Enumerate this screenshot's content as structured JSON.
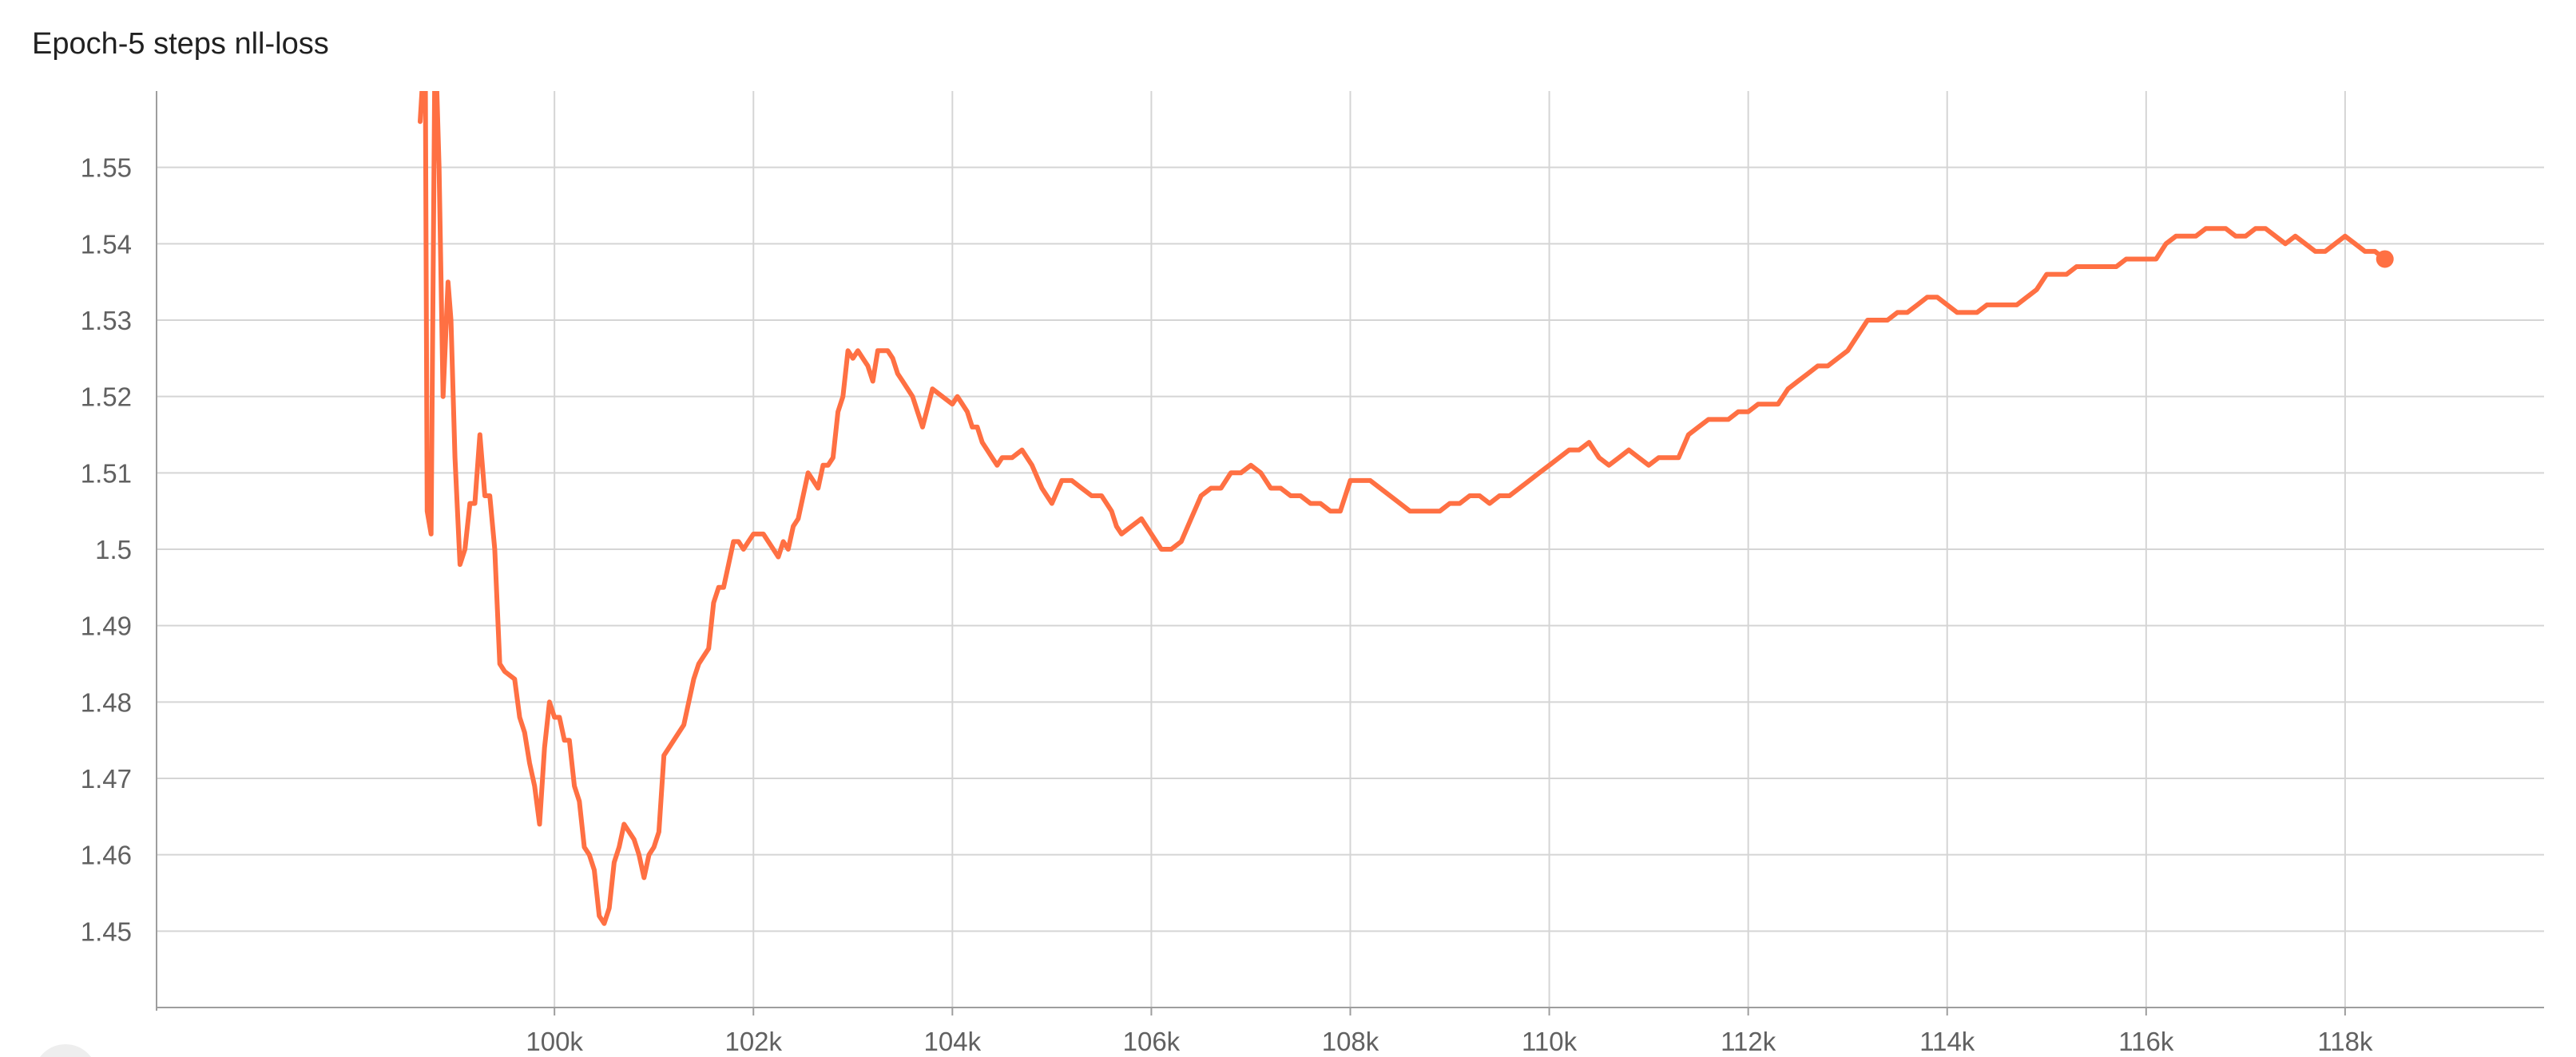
{
  "chart_data": {
    "type": "line",
    "title": "Epoch-5 steps nll-loss",
    "xlabel": "",
    "ylabel": "",
    "xlim": [
      96000,
      120000
    ],
    "ylim": [
      1.44,
      1.56
    ],
    "grid": true,
    "legend": "none",
    "x_ticks": [
      100000,
      102000,
      104000,
      106000,
      108000,
      110000,
      112000,
      114000,
      116000,
      118000
    ],
    "x_tick_labels": [
      "100k",
      "102k",
      "104k",
      "106k",
      "108k",
      "110k",
      "112k",
      "114k",
      "116k",
      "118k"
    ],
    "y_ticks": [
      1.45,
      1.46,
      1.47,
      1.48,
      1.49,
      1.5,
      1.51,
      1.52,
      1.53,
      1.54,
      1.55
    ],
    "y_tick_labels": [
      "1.45",
      "1.46",
      "1.47",
      "1.48",
      "1.49",
      "1.5",
      "1.51",
      "1.52",
      "1.53",
      "1.54",
      "1.55"
    ],
    "series": [
      {
        "color": "#ff7043",
        "last_point_marker": true,
        "x": [
          98650,
          98700,
          98720,
          98760,
          98800,
          98840,
          98880,
          98930,
          98960,
          99000,
          99050,
          99100,
          99150,
          99200,
          99250,
          99300,
          99350,
          99400,
          99450,
          99500,
          99600,
          99650,
          99700,
          99750,
          99800,
          99850,
          99900,
          99950,
          100000,
          100050,
          100100,
          100150,
          100200,
          100250,
          100300,
          100350,
          100400,
          100450,
          100500,
          100550,
          100600,
          100650,
          100700,
          100750,
          100800,
          100850,
          100900,
          100950,
          101000,
          101050,
          101100,
          101150,
          101200,
          101300,
          101400,
          101450,
          101500,
          101550,
          101600,
          101650,
          101700,
          101750,
          101800,
          101850,
          101900,
          101950,
          102000,
          102050,
          102100,
          102150,
          102200,
          102250,
          102300,
          102350,
          102400,
          102450,
          102500,
          102550,
          102600,
          102650,
          102700,
          102750,
          102800,
          102850,
          102900,
          102950,
          103000,
          103050,
          103100,
          103150,
          103200,
          103250,
          103300,
          103350,
          103400,
          103450,
          103500,
          103550,
          103600,
          103650,
          103700,
          103800,
          103900,
          104000,
          104050,
          104100,
          104150,
          104200,
          104250,
          104300,
          104350,
          104400,
          104450,
          104500,
          104600,
          104700,
          104800,
          104900,
          105000,
          105100,
          105200,
          105300,
          105400,
          105500,
          105550,
          105600,
          105650,
          105700,
          105800,
          105900,
          106000,
          106100,
          106200,
          106300,
          106400,
          106500,
          106600,
          106700,
          106800,
          106900,
          107000,
          107100,
          107200,
          107300,
          107400,
          107500,
          107600,
          107700,
          107800,
          107900,
          108000,
          108100,
          108200,
          108300,
          108400,
          108500,
          108600,
          108700,
          108800,
          108900,
          109000,
          109100,
          109200,
          109300,
          109400,
          109500,
          109600,
          109700,
          109800,
          109900,
          110000,
          110100,
          110200,
          110300,
          110400,
          110500,
          110600,
          110700,
          110800,
          110900,
          111000,
          111100,
          111200,
          111300,
          111400,
          111500,
          111600,
          111700,
          111800,
          111900,
          112000,
          112100,
          112200,
          112300,
          112400,
          112500,
          112600,
          112700,
          112800,
          112900,
          113000,
          113100,
          113200,
          113300,
          113400,
          113500,
          113600,
          113700,
          113800,
          113900,
          114000,
          114100,
          114200,
          114300,
          114400,
          114500,
          114600,
          114700,
          114800,
          114900,
          115000,
          115100,
          115200,
          115300,
          115400,
          115500,
          115600,
          115700,
          115800,
          115900,
          116000,
          116100,
          116200,
          116300,
          116400,
          116500,
          116600,
          116700,
          116800,
          116900,
          117000,
          117100,
          117200,
          117300,
          117400,
          117500,
          117600,
          117700,
          117800,
          117900,
          118000,
          118100,
          118200,
          118300,
          118400
        ],
        "y": [
          1.556,
          1.567,
          1.505,
          1.502,
          1.568,
          1.55,
          1.52,
          1.535,
          1.53,
          1.512,
          1.498,
          1.5,
          1.506,
          1.506,
          1.515,
          1.507,
          1.507,
          1.5,
          1.485,
          1.484,
          1.483,
          1.478,
          1.476,
          1.472,
          1.469,
          1.464,
          1.474,
          1.48,
          1.478,
          1.478,
          1.475,
          1.475,
          1.469,
          1.467,
          1.461,
          1.46,
          1.458,
          1.452,
          1.451,
          1.453,
          1.459,
          1.461,
          1.464,
          1.463,
          1.462,
          1.46,
          1.457,
          1.46,
          1.461,
          1.463,
          1.473,
          1.474,
          1.475,
          1.477,
          1.483,
          1.485,
          1.486,
          1.487,
          1.493,
          1.495,
          1.495,
          1.498,
          1.501,
          1.501,
          1.5,
          1.501,
          1.502,
          1.502,
          1.502,
          1.501,
          1.5,
          1.499,
          1.501,
          1.5,
          1.503,
          1.504,
          1.507,
          1.51,
          1.509,
          1.508,
          1.511,
          1.511,
          1.512,
          1.518,
          1.52,
          1.526,
          1.525,
          1.526,
          1.525,
          1.524,
          1.522,
          1.526,
          1.526,
          1.526,
          1.525,
          1.523,
          1.522,
          1.521,
          1.52,
          1.518,
          1.516,
          1.521,
          1.52,
          1.519,
          1.52,
          1.519,
          1.518,
          1.516,
          1.516,
          1.514,
          1.513,
          1.512,
          1.511,
          1.512,
          1.512,
          1.513,
          1.511,
          1.508,
          1.506,
          1.509,
          1.509,
          1.508,
          1.507,
          1.507,
          1.506,
          1.505,
          1.503,
          1.502,
          1.503,
          1.504,
          1.502,
          1.5,
          1.5,
          1.501,
          1.504,
          1.507,
          1.508,
          1.508,
          1.51,
          1.51,
          1.511,
          1.51,
          1.508,
          1.508,
          1.507,
          1.507,
          1.506,
          1.506,
          1.505,
          1.505,
          1.509,
          1.509,
          1.509,
          1.508,
          1.507,
          1.506,
          1.505,
          1.505,
          1.505,
          1.505,
          1.506,
          1.506,
          1.507,
          1.507,
          1.506,
          1.507,
          1.507,
          1.508,
          1.509,
          1.51,
          1.511,
          1.512,
          1.513,
          1.513,
          1.514,
          1.512,
          1.511,
          1.512,
          1.513,
          1.512,
          1.511,
          1.512,
          1.512,
          1.512,
          1.515,
          1.516,
          1.517,
          1.517,
          1.517,
          1.518,
          1.518,
          1.519,
          1.519,
          1.519,
          1.521,
          1.522,
          1.523,
          1.524,
          1.524,
          1.525,
          1.526,
          1.528,
          1.53,
          1.53,
          1.53,
          1.531,
          1.531,
          1.532,
          1.533,
          1.533,
          1.532,
          1.531,
          1.531,
          1.531,
          1.532,
          1.532,
          1.532,
          1.532,
          1.533,
          1.534,
          1.536,
          1.536,
          1.536,
          1.537,
          1.537,
          1.537,
          1.537,
          1.537,
          1.538,
          1.538,
          1.538,
          1.538,
          1.54,
          1.541,
          1.541,
          1.541,
          1.542,
          1.542,
          1.542,
          1.541,
          1.541,
          1.542,
          1.542,
          1.541,
          1.54,
          1.541,
          1.54,
          1.539,
          1.539,
          1.54,
          1.541,
          1.54,
          1.539,
          1.539,
          1.538
        ]
      }
    ]
  }
}
